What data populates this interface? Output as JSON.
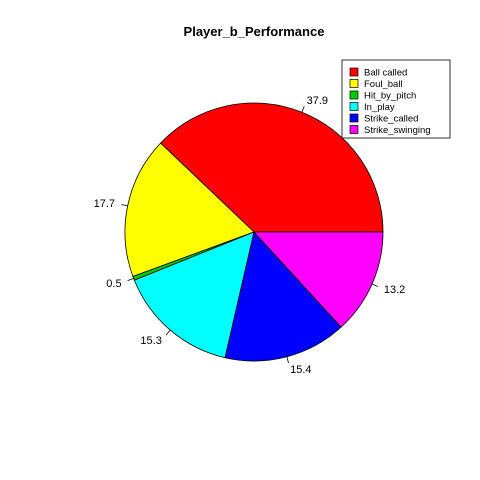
{
  "chart_data": {
    "type": "pie",
    "title": "Player_b_Performance",
    "categories": [
      "Ball called",
      "Foul_ball",
      "Hit_by_pitch",
      "In_play",
      "Strike_called",
      "Strike_swinging"
    ],
    "values": [
      37.9,
      17.7,
      0.5,
      15.3,
      15.4,
      13.2
    ],
    "labels": [
      "37.9",
      "17.7",
      "0.5",
      "15.3",
      "15.4",
      "13.2"
    ],
    "colors": [
      "#ff0000",
      "#ffff00",
      "#00cc00",
      "#00ffff",
      "#0000ff",
      "#ff00ff"
    ],
    "start_angle_deg": 0,
    "direction": "counterclockwise",
    "legend_position": "top-right"
  }
}
